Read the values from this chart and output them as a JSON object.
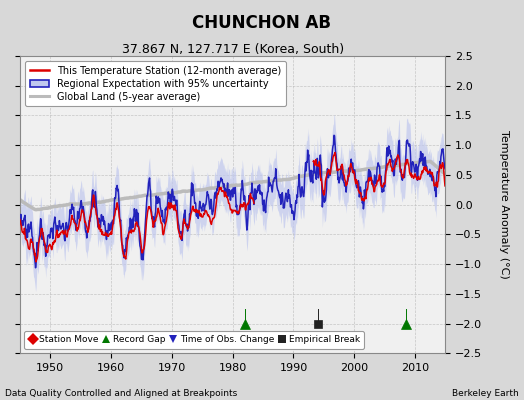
{
  "title": "CHUNCHON AB",
  "subtitle": "37.867 N, 127.717 E (Korea, South)",
  "ylabel": "Temperature Anomaly (°C)",
  "footer_left": "Data Quality Controlled and Aligned at Breakpoints",
  "footer_right": "Berkeley Earth",
  "xlim": [
    1945,
    2015
  ],
  "ylim": [
    -2.5,
    2.5
  ],
  "xticks": [
    1950,
    1960,
    1970,
    1980,
    1990,
    2000,
    2010
  ],
  "yticks": [
    -2.5,
    -2,
    -1.5,
    -1,
    -0.5,
    0,
    0.5,
    1,
    1.5,
    2,
    2.5
  ],
  "background_color": "#d8d8d8",
  "plot_bg_color": "#f0f0f0",
  "station_color": "#dd0000",
  "regional_color": "#2222bb",
  "regional_shade_color": "#c0c8ee",
  "global_color": "#bbbbbb",
  "legend_items": [
    {
      "label": "This Temperature Station (12-month average)",
      "color": "#dd0000",
      "lw": 1.5
    },
    {
      "label": "Regional Expectation with 95% uncertainty",
      "color": "#2222bb",
      "lw": 1.5
    },
    {
      "label": "Global Land (5-year average)",
      "color": "#bbbbbb",
      "lw": 2.0
    }
  ],
  "markers": [
    {
      "year": 1982.0,
      "type": "record_gap",
      "color": "#007700",
      "marker": "^",
      "size": 7
    },
    {
      "year": 1994.0,
      "type": "empirical_break",
      "color": "#222222",
      "marker": "s",
      "size": 6
    },
    {
      "year": 2008.5,
      "type": "record_gap",
      "color": "#007700",
      "marker": "^",
      "size": 7
    }
  ],
  "marker_legend": [
    {
      "label": "Station Move",
      "color": "#dd0000",
      "marker": "D"
    },
    {
      "label": "Record Gap",
      "color": "#007700",
      "marker": "^"
    },
    {
      "label": "Time of Obs. Change",
      "color": "#2222bb",
      "marker": "v"
    },
    {
      "label": "Empirical Break",
      "color": "#222222",
      "marker": "s"
    }
  ]
}
